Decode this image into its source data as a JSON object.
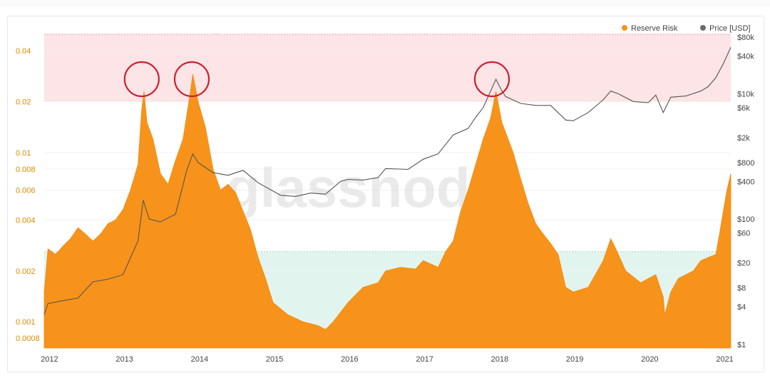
{
  "chart_data": {
    "type": "area",
    "title": "",
    "watermark": "glassnode",
    "legend": {
      "placement": "top-right",
      "items": [
        {
          "name": "Reserve Risk",
          "color": "#f7931a"
        },
        {
          "name": "Price [USD]",
          "color": "#6b6b6b"
        }
      ]
    },
    "x_axis": {
      "ticks": [
        "2012",
        "2013",
        "2014",
        "2015",
        "2016",
        "2017",
        "2018",
        "2019",
        "2020",
        "2021"
      ]
    },
    "y_left": {
      "scale": "log",
      "color": "#e08a00",
      "ticks": [
        "0.04",
        "0.02",
        "0.01",
        "0.008",
        "0.006",
        "0.004",
        "0.002",
        "0.001",
        "0.0008"
      ]
    },
    "y_right": {
      "scale": "log",
      "ticks": [
        "$80k",
        "$40k",
        "$10k",
        "$6k",
        "$2k",
        "$800",
        "$400",
        "$100",
        "$60",
        "$20",
        "$8",
        "$4",
        "$1"
      ]
    },
    "bands": [
      {
        "name": "high-risk",
        "from": 0.02,
        "to": 0.05,
        "color": "#fde4e6"
      },
      {
        "name": "low-risk",
        "from": 0.0008,
        "to": 0.0026,
        "color": "#e1f5ee"
      }
    ],
    "highlight_circles": [
      "2013-04",
      "2013-12",
      "2017-12"
    ],
    "series": [
      {
        "name": "Reserve Risk",
        "color": "#f7931a",
        "x": [
          2011.95,
          2012.0,
          2012.1,
          2012.2,
          2012.3,
          2012.4,
          2012.5,
          2012.6,
          2012.7,
          2012.8,
          2012.9,
          2013.0,
          2013.1,
          2013.2,
          2013.25,
          2013.28,
          2013.32,
          2013.4,
          2013.5,
          2013.6,
          2013.7,
          2013.8,
          2013.9,
          2013.93,
          2014.0,
          2014.1,
          2014.2,
          2014.3,
          2014.4,
          2014.5,
          2014.6,
          2014.7,
          2014.8,
          2014.9,
          2015.0,
          2015.2,
          2015.4,
          2015.6,
          2015.7,
          2015.8,
          2016.0,
          2016.2,
          2016.4,
          2016.5,
          2016.7,
          2016.9,
          2017.0,
          2017.2,
          2017.3,
          2017.4,
          2017.5,
          2017.6,
          2017.7,
          2017.8,
          2017.9,
          2017.97,
          2018.05,
          2018.2,
          2018.3,
          2018.4,
          2018.5,
          2018.6,
          2018.7,
          2018.8,
          2018.9,
          2019.0,
          2019.2,
          2019.4,
          2019.5,
          2019.55,
          2019.7,
          2019.9,
          2020.0,
          2020.1,
          2020.2,
          2020.22,
          2020.3,
          2020.4,
          2020.5,
          2020.6,
          2020.7,
          2020.8,
          2020.9,
          2020.95,
          2021.0,
          2021.05,
          2021.1
        ],
        "y": [
          0.0015,
          0.0027,
          0.0025,
          0.0028,
          0.0031,
          0.0036,
          0.0033,
          0.003,
          0.0033,
          0.0038,
          0.004,
          0.0046,
          0.006,
          0.0085,
          0.018,
          0.023,
          0.015,
          0.012,
          0.0075,
          0.0065,
          0.009,
          0.012,
          0.023,
          0.029,
          0.02,
          0.014,
          0.008,
          0.006,
          0.0065,
          0.0058,
          0.0045,
          0.0035,
          0.0024,
          0.0018,
          0.0013,
          0.0011,
          0.001,
          0.00095,
          0.0009,
          0.001,
          0.0013,
          0.0016,
          0.0017,
          0.002,
          0.0021,
          0.00205,
          0.0023,
          0.0021,
          0.0026,
          0.003,
          0.0045,
          0.006,
          0.0085,
          0.012,
          0.016,
          0.023,
          0.015,
          0.01,
          0.007,
          0.005,
          0.0038,
          0.0033,
          0.0029,
          0.0025,
          0.0016,
          0.0015,
          0.0016,
          0.0023,
          0.0031,
          0.0028,
          0.002,
          0.0017,
          0.0018,
          0.0019,
          0.0014,
          0.0011,
          0.0015,
          0.0018,
          0.0019,
          0.002,
          0.0023,
          0.0024,
          0.0025,
          0.0033,
          0.0045,
          0.006,
          0.0075
        ]
      },
      {
        "name": "Price [USD]",
        "color": "#6b6b6b",
        "x": [
          2011.95,
          2012.0,
          2012.2,
          2012.4,
          2012.6,
          2012.8,
          2013.0,
          2013.2,
          2013.27,
          2013.35,
          2013.5,
          2013.7,
          2013.85,
          2013.93,
          2014.0,
          2014.2,
          2014.4,
          2014.6,
          2014.8,
          2015.0,
          2015.1,
          2015.3,
          2015.5,
          2015.7,
          2015.9,
          2016.0,
          2016.2,
          2016.4,
          2016.5,
          2016.8,
          2017.0,
          2017.2,
          2017.4,
          2017.6,
          2017.7,
          2017.8,
          2017.9,
          2017.97,
          2018.05,
          2018.1,
          2018.3,
          2018.5,
          2018.7,
          2018.9,
          2019.0,
          2019.2,
          2019.4,
          2019.5,
          2019.6,
          2019.8,
          2020.0,
          2020.1,
          2020.2,
          2020.3,
          2020.5,
          2020.7,
          2020.8,
          2020.9,
          2021.0,
          2021.1
        ],
        "y": [
          3,
          4.5,
          5,
          5.5,
          10,
          11,
          13,
          45,
          200,
          100,
          90,
          120,
          600,
          1100,
          800,
          550,
          500,
          600,
          380,
          280,
          240,
          230,
          260,
          250,
          400,
          430,
          420,
          460,
          640,
          620,
          900,
          1100,
          2200,
          2800,
          4200,
          6000,
          11000,
          17000,
          11000,
          9000,
          7000,
          6500,
          6500,
          3800,
          3700,
          5000,
          8000,
          11000,
          10000,
          7500,
          7200,
          9500,
          5000,
          8800,
          9200,
          11000,
          13000,
          18000,
          30000,
          55000
        ]
      }
    ]
  }
}
